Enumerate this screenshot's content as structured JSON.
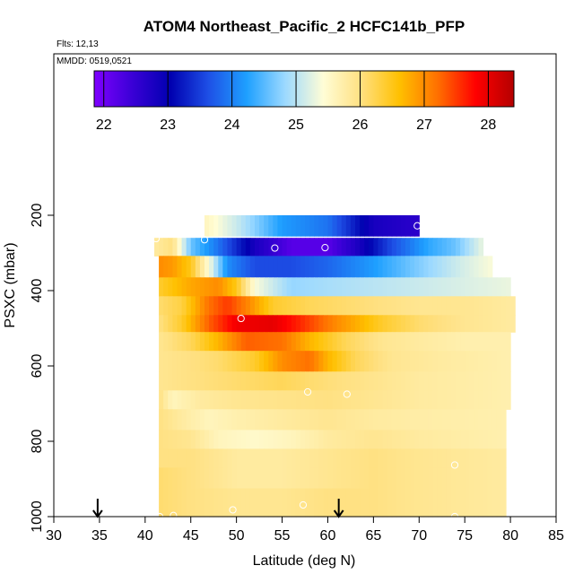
{
  "chart_data": {
    "type": "heatmap",
    "title": "ATOM4 Northeast_Pacific_2 HCFC141b_PFP",
    "flights_label": "Flts: 12,13",
    "dates_label": "MMDD: 0519,0521",
    "xlabel": "Latitude (deg N)",
    "ylabel": "PSXC (mbar)",
    "xlim": [
      30,
      85
    ],
    "ylim": [
      1000,
      0
    ],
    "x_ticks": [
      "30",
      "35",
      "40",
      "45",
      "50",
      "55",
      "60",
      "65",
      "70",
      "75",
      "80",
      "85"
    ],
    "y_ticks": [
      "200",
      "400",
      "600",
      "800",
      "1000"
    ],
    "colorbar": {
      "range": [
        21.85,
        28.4
      ],
      "tick_labels": [
        "22",
        "23",
        "24",
        "25",
        "26",
        "27",
        "28"
      ],
      "colors": [
        "#7f00ff",
        "#3a00d6",
        "#0000b0",
        "#1e50e6",
        "#1ea0ff",
        "#9cd9ff",
        "#fffdd6",
        "#ffe080",
        "#ffc000",
        "#ff7000",
        "#ff0000",
        "#b40000"
      ]
    },
    "grid": false,
    "legend": "colorbar top",
    "arrows_at_latitude": [
      34.8,
      61.2
    ],
    "rows": [
      {
        "p_top": 200,
        "p_bot": 255,
        "x_start": 46.5,
        "x_end": 70,
        "knots": [
          [
            46.5,
            25.6
          ],
          [
            50,
            25.1
          ],
          [
            55,
            24.2
          ],
          [
            60,
            23.9
          ],
          [
            65,
            22.8
          ],
          [
            70,
            22.6
          ]
        ]
      },
      {
        "p_top": 260,
        "p_bot": 308,
        "x_start": 41,
        "x_end": 77,
        "knots": [
          [
            41,
            25.8
          ],
          [
            43,
            26.0
          ],
          [
            45,
            24.6
          ],
          [
            48,
            23.9
          ],
          [
            52,
            22.8
          ],
          [
            56,
            22.2
          ],
          [
            60,
            22.2
          ],
          [
            63,
            22.7
          ],
          [
            67,
            23.6
          ],
          [
            71,
            24.3
          ],
          [
            74,
            24.6
          ],
          [
            77,
            25.3
          ]
        ]
      },
      {
        "p_top": 308,
        "p_bot": 365,
        "x_start": 41.5,
        "x_end": 78,
        "knots": [
          [
            41.5,
            27.0
          ],
          [
            43,
            26.9
          ],
          [
            45,
            26.5
          ],
          [
            47,
            25.4
          ],
          [
            49,
            24.1
          ],
          [
            52,
            23.6
          ],
          [
            56,
            23.6
          ],
          [
            60,
            23.8
          ],
          [
            65,
            24.2
          ],
          [
            70,
            24.7
          ],
          [
            74,
            25.1
          ],
          [
            78,
            25.4
          ]
        ]
      },
      {
        "p_top": 365,
        "p_bot": 415,
        "x_start": 41.5,
        "x_end": 80,
        "knots": [
          [
            41.5,
            26.4
          ],
          [
            45,
            26.8
          ],
          [
            48,
            27.0
          ],
          [
            50,
            26.5
          ],
          [
            52,
            25.4
          ],
          [
            56,
            24.8
          ],
          [
            60,
            24.9
          ],
          [
            65,
            25.0
          ],
          [
            70,
            25.1
          ],
          [
            75,
            25.2
          ],
          [
            80,
            25.3
          ]
        ]
      },
      {
        "p_top": 415,
        "p_bot": 465,
        "x_start": 41.5,
        "x_end": 80.5,
        "knots": [
          [
            41.5,
            26.1
          ],
          [
            44,
            26.3
          ],
          [
            47,
            27.2
          ],
          [
            49,
            27.5
          ],
          [
            51,
            27.1
          ],
          [
            54,
            26.4
          ],
          [
            58,
            26.2
          ],
          [
            62,
            26.1
          ],
          [
            66,
            26.0
          ],
          [
            70,
            25.9
          ],
          [
            75,
            25.9
          ],
          [
            80.5,
            25.8
          ]
        ]
      },
      {
        "p_top": 465,
        "p_bot": 510,
        "x_start": 41.5,
        "x_end": 80.5,
        "knots": [
          [
            41.5,
            26.0
          ],
          [
            44,
            26.4
          ],
          [
            47,
            27.3
          ],
          [
            50,
            27.9
          ],
          [
            54,
            28.0
          ],
          [
            57,
            27.6
          ],
          [
            61,
            27.0
          ],
          [
            66,
            26.4
          ],
          [
            70,
            26.1
          ],
          [
            75,
            25.9
          ],
          [
            80.5,
            25.8
          ]
        ]
      },
      {
        "p_top": 510,
        "p_bot": 560,
        "x_start": 41.5,
        "x_end": 80,
        "knots": [
          [
            41.5,
            25.9
          ],
          [
            45,
            26.2
          ],
          [
            48,
            26.7
          ],
          [
            51,
            27.3
          ],
          [
            55,
            27.2
          ],
          [
            58,
            26.7
          ],
          [
            62,
            26.2
          ],
          [
            66,
            25.9
          ],
          [
            70,
            25.8
          ],
          [
            75,
            25.7
          ],
          [
            80,
            25.7
          ]
        ]
      },
      {
        "p_top": 560,
        "p_bot": 615,
        "x_start": 41.5,
        "x_end": 80,
        "knots": [
          [
            41.5,
            25.9
          ],
          [
            45,
            26.0
          ],
          [
            48,
            26.1
          ],
          [
            52,
            26.4
          ],
          [
            55,
            27.0
          ],
          [
            58,
            27.2
          ],
          [
            60,
            26.7
          ],
          [
            63,
            26.2
          ],
          [
            67,
            25.9
          ],
          [
            72,
            25.8
          ],
          [
            80,
            25.7
          ]
        ]
      },
      {
        "p_top": 615,
        "p_bot": 665,
        "x_start": 41.5,
        "x_end": 80,
        "knots": [
          [
            41.5,
            25.9
          ],
          [
            45,
            26.0
          ],
          [
            50,
            26.1
          ],
          [
            55,
            26.2
          ],
          [
            58,
            26.1
          ],
          [
            62,
            26.0
          ],
          [
            66,
            25.9
          ],
          [
            70,
            25.8
          ],
          [
            80,
            25.7
          ]
        ]
      },
      {
        "p_top": 665,
        "p_bot": 715,
        "x_start": 41.5,
        "x_end": 80,
        "knots": [
          [
            41.5,
            26.0
          ],
          [
            43,
            25.6
          ],
          [
            46,
            25.8
          ],
          [
            50,
            25.9
          ],
          [
            55,
            25.95
          ],
          [
            60,
            26.0
          ],
          [
            65,
            25.9
          ],
          [
            70,
            25.8
          ],
          [
            80,
            25.7
          ]
        ]
      },
      {
        "p_top": 715,
        "p_bot": 770,
        "x_start": 41.5,
        "x_end": 79.5,
        "knots": [
          [
            41.5,
            26.0
          ],
          [
            44,
            25.8
          ],
          [
            47,
            25.6
          ],
          [
            50,
            25.7
          ],
          [
            55,
            25.8
          ],
          [
            60,
            25.9
          ],
          [
            65,
            25.8
          ],
          [
            70,
            25.75
          ],
          [
            79.5,
            25.7
          ]
        ]
      },
      {
        "p_top": 770,
        "p_bot": 820,
        "x_start": 41.5,
        "x_end": 79.5,
        "knots": [
          [
            41.5,
            26.0
          ],
          [
            45,
            25.9
          ],
          [
            48,
            25.6
          ],
          [
            52,
            25.5
          ],
          [
            56,
            25.6
          ],
          [
            60,
            25.8
          ],
          [
            65,
            25.9
          ],
          [
            70,
            25.8
          ],
          [
            79.5,
            25.7
          ]
        ]
      },
      {
        "p_top": 820,
        "p_bot": 870,
        "x_start": 41.5,
        "x_end": 79.5,
        "knots": [
          [
            41.5,
            26.0
          ],
          [
            45,
            26.0
          ],
          [
            50,
            25.8
          ],
          [
            55,
            25.8
          ],
          [
            60,
            25.9
          ],
          [
            65,
            26.0
          ],
          [
            70,
            25.9
          ],
          [
            79.5,
            25.8
          ]
        ]
      },
      {
        "p_top": 870,
        "p_bot": 925,
        "x_start": 41.5,
        "x_end": 79.5,
        "knots": [
          [
            41.5,
            26.1
          ],
          [
            45,
            26.0
          ],
          [
            50,
            25.8
          ],
          [
            55,
            25.8
          ],
          [
            60,
            25.9
          ],
          [
            65,
            26.0
          ],
          [
            70,
            25.9
          ],
          [
            79.5,
            25.8
          ]
        ]
      },
      {
        "p_top": 925,
        "p_bot": 975,
        "x_start": 41.5,
        "x_end": 79.5,
        "knots": [
          [
            41.5,
            26.1
          ],
          [
            45,
            26.0
          ],
          [
            50,
            25.9
          ],
          [
            55,
            25.9
          ],
          [
            60,
            26.0
          ],
          [
            65,
            26.0
          ],
          [
            70,
            25.9
          ],
          [
            79.5,
            25.8
          ]
        ]
      },
      {
        "p_top": 975,
        "p_bot": 1000,
        "x_start": 41.5,
        "x_end": 79.5,
        "knots": [
          [
            41.5,
            26.1
          ],
          [
            45,
            26.0
          ],
          [
            50,
            25.9
          ],
          [
            55,
            25.9
          ],
          [
            60,
            26.0
          ],
          [
            65,
            26.0
          ],
          [
            70,
            25.9
          ],
          [
            79.5,
            25.8
          ]
        ]
      }
    ],
    "sample_points": [
      {
        "lat": 69.8,
        "p": 228
      },
      {
        "lat": 41.2,
        "p": 262
      },
      {
        "lat": 46.5,
        "p": 265
      },
      {
        "lat": 54.2,
        "p": 287
      },
      {
        "lat": 59.7,
        "p": 286
      },
      {
        "lat": 50.5,
        "p": 474
      },
      {
        "lat": 57.8,
        "p": 669
      },
      {
        "lat": 62.1,
        "p": 675
      },
      {
        "lat": 73.9,
        "p": 863
      },
      {
        "lat": 57.3,
        "p": 969
      },
      {
        "lat": 49.6,
        "p": 982
      },
      {
        "lat": 41.6,
        "p": 1000
      },
      {
        "lat": 43.1,
        "p": 997
      },
      {
        "lat": 73.9,
        "p": 1000
      }
    ]
  }
}
